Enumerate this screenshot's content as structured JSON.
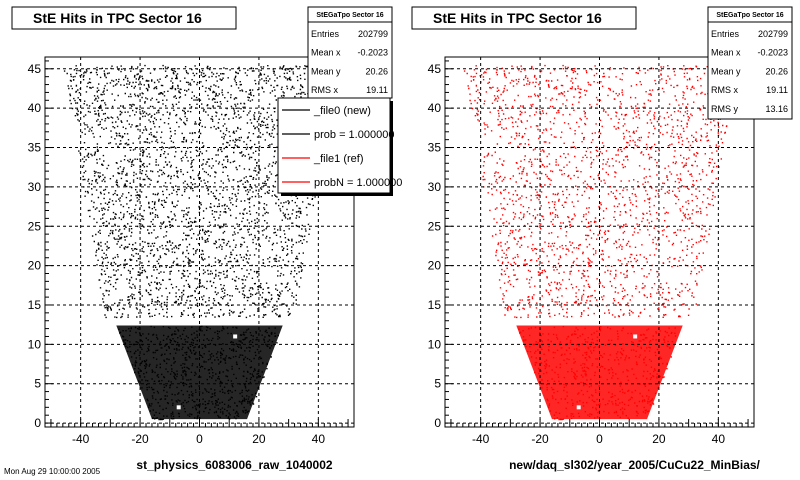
{
  "panels": [
    {
      "title": "StE Hits in TPC Sector 16",
      "xlabel": "st_physics_6083006_raw_1040002",
      "color": "#000000",
      "stats": {
        "name": "StEGaTpo Sector 16",
        "rows": [
          {
            "label": "Entries",
            "value": "202799"
          },
          {
            "label": "Mean x",
            "value": "-0.2023"
          },
          {
            "label": "Mean y",
            "value": "20.26"
          },
          {
            "label": "RMS x",
            "value": "19.11"
          }
        ]
      },
      "legend": [
        {
          "label": "_file0 (new)",
          "color": "#000000"
        },
        {
          "label": "prob = 1.000000",
          "color": "#000000"
        },
        {
          "label": "_file1 (ref)",
          "color": "#ff0000"
        },
        {
          "label": "probN = 1.000000",
          "color": "#ff0000"
        }
      ]
    },
    {
      "title": "StE Hits in TPC Sector 16",
      "xlabel": "new/daq_sl302/year_2005/CuCu22_MinBias/",
      "color": "#ff0000",
      "stats": {
        "name": "StEGaTpo Sector 16",
        "rows": [
          {
            "label": "Entries",
            "value": "202799"
          },
          {
            "label": "Mean x",
            "value": "-0.2023"
          },
          {
            "label": "Mean y",
            "value": "20.26"
          },
          {
            "label": "RMS x",
            "value": "19.11"
          },
          {
            "label": "RMS y",
            "value": "13.16"
          }
        ]
      },
      "legend": []
    }
  ],
  "chart_data": {
    "type": "scatter",
    "xlim": [
      -52,
      52
    ],
    "ylim": [
      -0.5,
      46.5
    ],
    "xticks": [
      -40,
      -20,
      0,
      20,
      40
    ],
    "yticks": [
      0,
      5,
      10,
      15,
      20,
      25,
      30,
      35,
      40,
      45
    ],
    "grid": true,
    "shape": {
      "upper": {
        "y_range": [
          13.5,
          45.5
        ],
        "x_half_at_top": 46,
        "x_half_at_bottom": 32
      },
      "gap": [
        12.4,
        13.5
      ],
      "lower": {
        "y_range": [
          0.5,
          12.4
        ],
        "x_half_at_top": 28,
        "x_half_at_bottom": 16
      }
    },
    "holes": [
      [
        -26,
        17,
        1.2
      ],
      [
        -8,
        24,
        1.2
      ],
      [
        22,
        22,
        1.0
      ],
      [
        22,
        19,
        1.0
      ],
      [
        25,
        26,
        1.2
      ],
      [
        4,
        36,
        1.5
      ],
      [
        -30,
        34,
        1.2
      ],
      [
        22,
        34,
        1.2
      ],
      [
        20,
        41,
        1.2
      ],
      [
        -7,
        2,
        0.6
      ],
      [
        12,
        11,
        0.7
      ]
    ]
  },
  "bottom_left_text": "Mon Aug 29 10:00:00 2005"
}
